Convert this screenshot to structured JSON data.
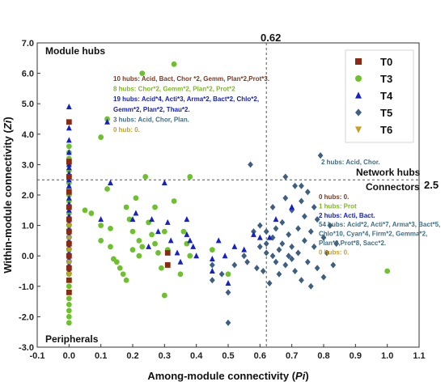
{
  "chart_data": {
    "type": "scatter",
    "xlabel": "Among-module connectivity (",
    "xlabel_var": "Pi",
    "xlabel_end": ")",
    "ylabel": "Within-module connectivity (",
    "ylabel_var": "Zi",
    "ylabel_end": ")",
    "xlim": [
      -0.1,
      1.1
    ],
    "ylim": [
      -3.0,
      7.0
    ],
    "xticks": [
      "-0.1",
      "0.0",
      "0.1",
      "0.2",
      "0.3",
      "0.4",
      "0.5",
      "0.6",
      "0.7",
      "0.8",
      "0.9",
      "1.0",
      "1.1"
    ],
    "yticks": [
      "-3.0",
      "-2.0",
      "-1.0",
      "0.0",
      "1.0",
      "2.0",
      "3.0",
      "4.0",
      "5.0",
      "6.0",
      "7.0"
    ],
    "thresholds": {
      "x": 0.62,
      "y": 2.5,
      "x_label": "0.62",
      "y_label": "2.5"
    },
    "regions": {
      "module_hubs": "Module hubs",
      "network_hubs": "Network hubs",
      "connectors": "Connectors",
      "peripherals": "Peripherals"
    },
    "legend": {
      "placement": "top-right",
      "items": [
        {
          "name": "T0",
          "marker": "square",
          "color": "#8B2A12"
        },
        {
          "name": "T3",
          "marker": "circle",
          "color": "#6DC22B"
        },
        {
          "name": "T4",
          "marker": "triangle",
          "color": "#1520C8"
        },
        {
          "name": "T5",
          "marker": "diamond",
          "color": "#3E5F82"
        },
        {
          "name": "T6",
          "marker": "triangle-down",
          "color": "#C8A020"
        }
      ]
    },
    "annotations_module_hubs": [
      {
        "text": "10 hubs: Acid, Bact, Chor *2, Gemm, Plan*2,Prot*3.",
        "color": "#7A3A22"
      },
      {
        "text": "8 hubs: Chor*2, Gemm*2, Plan*2, Prot*2",
        "color": "#7DB81F"
      },
      {
        "text": "19 hubs: Acid*4, Acti*3, Arma*2, Bact*2, Chlo*2,",
        "color": "#1520C8"
      },
      {
        "text": "Gemm*2, Plan*2, Thau*2.",
        "color": "#1520C8"
      },
      {
        "text": "3 hubs:  Acid, Chor, Plan.",
        "color": "#3E6E86"
      },
      {
        "text": "0 hub: 0.",
        "color": "#C8A020"
      }
    ],
    "annotation_network_hubs": {
      "text": "2 hubs:  Acid, Chor.",
      "color": "#3E6E86"
    },
    "annotations_connectors": [
      {
        "text": "0 hubs: 0.",
        "color": "#7A3A22"
      },
      {
        "text": "1 hubs: Prot",
        "color": "#7DB81F"
      },
      {
        "text": "2 hubs: Acti, Bact.",
        "color": "#1520C8"
      },
      {
        "text": "54 hubs: Acid*2, Acti*7, Arma*3, Bact*5,",
        "color": "#3E6E86"
      },
      {
        "text": "Chlo*10, Cyan*4, Firm*2, Gemma*2,",
        "color": "#3E6E86"
      },
      {
        "text": "Plan*9,Prot*8, Sacc*2.",
        "color": "#3E6E86"
      },
      {
        "text": "0 hubs: 0.",
        "color": "#C8A020"
      }
    ],
    "series": [
      {
        "name": "T0",
        "points": [
          [
            0.0,
            4.4
          ],
          [
            0.0,
            3.1
          ],
          [
            0.0,
            2.6
          ],
          [
            0.0,
            2.1
          ],
          [
            0.0,
            1.6
          ],
          [
            0.0,
            1.2
          ],
          [
            0.0,
            0.8
          ],
          [
            0.0,
            0.4
          ],
          [
            0.0,
            0.0
          ],
          [
            0.0,
            -0.4
          ],
          [
            0.0,
            -0.8
          ],
          [
            0.0,
            -1.2
          ],
          [
            0.31,
            0.1
          ],
          [
            0.31,
            -0.3
          ]
        ]
      },
      {
        "name": "T3",
        "points": [
          [
            0.0,
            3.6
          ],
          [
            0.0,
            3.4
          ],
          [
            0.0,
            3.2
          ],
          [
            0.0,
            3.0
          ],
          [
            0.0,
            2.8
          ],
          [
            0.0,
            2.6
          ],
          [
            0.0,
            2.4
          ],
          [
            0.0,
            2.2
          ],
          [
            0.0,
            2.0
          ],
          [
            0.0,
            1.8
          ],
          [
            0.0,
            1.6
          ],
          [
            0.0,
            1.4
          ],
          [
            0.0,
            1.2
          ],
          [
            0.0,
            1.0
          ],
          [
            0.0,
            0.8
          ],
          [
            0.0,
            0.6
          ],
          [
            0.0,
            0.4
          ],
          [
            0.0,
            0.2
          ],
          [
            0.0,
            0.0
          ],
          [
            0.0,
            -0.2
          ],
          [
            0.0,
            -0.4
          ],
          [
            0.0,
            -0.6
          ],
          [
            0.0,
            -0.8
          ],
          [
            0.0,
            -1.0
          ],
          [
            0.0,
            -1.2
          ],
          [
            0.0,
            -1.4
          ],
          [
            0.0,
            -1.6
          ],
          [
            0.0,
            -1.8
          ],
          [
            0.0,
            -2.0
          ],
          [
            0.0,
            -2.2
          ],
          [
            0.05,
            1.5
          ],
          [
            0.07,
            1.4
          ],
          [
            0.1,
            3.9
          ],
          [
            0.1,
            1.0
          ],
          [
            0.1,
            0.5
          ],
          [
            0.12,
            4.5
          ],
          [
            0.12,
            2.2
          ],
          [
            0.13,
            0.9
          ],
          [
            0.13,
            0.3
          ],
          [
            0.14,
            -0.1
          ],
          [
            0.15,
            -0.2
          ],
          [
            0.16,
            -0.4
          ],
          [
            0.17,
            -0.6
          ],
          [
            0.18,
            -0.8
          ],
          [
            0.18,
            1.6
          ],
          [
            0.19,
            1.2
          ],
          [
            0.2,
            0.8
          ],
          [
            0.2,
            0.2
          ],
          [
            0.21,
            1.9
          ],
          [
            0.22,
            0.5
          ],
          [
            0.22,
            0.0
          ],
          [
            0.23,
            6.0
          ],
          [
            0.23,
            0.3
          ],
          [
            0.24,
            2.6
          ],
          [
            0.25,
            1.1
          ],
          [
            0.26,
            0.7
          ],
          [
            0.27,
            0.4
          ],
          [
            0.27,
            1.6
          ],
          [
            0.28,
            0.1
          ],
          [
            0.29,
            -0.4
          ],
          [
            0.3,
            0.8
          ],
          [
            0.3,
            -1.3
          ],
          [
            0.31,
            0.2
          ],
          [
            0.33,
            6.3
          ],
          [
            0.33,
            1.8
          ],
          [
            0.35,
            -0.6
          ],
          [
            0.36,
            0.8
          ],
          [
            0.37,
            0.4
          ],
          [
            0.38,
            2.6
          ],
          [
            0.38,
            0.0
          ],
          [
            0.45,
            0.2
          ],
          [
            0.5,
            -0.6
          ],
          [
            1.0,
            -0.5
          ]
        ]
      },
      {
        "name": "T4",
        "points": [
          [
            0.0,
            4.9
          ],
          [
            0.0,
            4.2
          ],
          [
            0.0,
            3.8
          ],
          [
            0.0,
            3.4
          ],
          [
            0.0,
            3.0
          ],
          [
            0.0,
            2.9
          ],
          [
            0.0,
            2.7
          ],
          [
            0.0,
            2.5
          ],
          [
            0.0,
            2.3
          ],
          [
            0.0,
            2.1
          ],
          [
            0.0,
            1.9
          ],
          [
            0.0,
            1.7
          ],
          [
            0.0,
            1.5
          ],
          [
            0.0,
            1.3
          ],
          [
            0.0,
            1.1
          ],
          [
            0.0,
            0.9
          ],
          [
            0.0,
            0.7
          ],
          [
            0.0,
            0.5
          ],
          [
            0.0,
            0.3
          ],
          [
            0.0,
            0.1
          ],
          [
            0.0,
            -0.1
          ],
          [
            0.0,
            -0.3
          ],
          [
            0.0,
            -0.5
          ],
          [
            0.1,
            1.2
          ],
          [
            0.12,
            4.4
          ],
          [
            0.13,
            2.4
          ],
          [
            0.2,
            1.2
          ],
          [
            0.21,
            1.4
          ],
          [
            0.25,
            0.3
          ],
          [
            0.26,
            1.2
          ],
          [
            0.28,
            0.8
          ],
          [
            0.3,
            2.4
          ],
          [
            0.31,
            1.1
          ],
          [
            0.32,
            0.5
          ],
          [
            0.34,
            0.1
          ],
          [
            0.35,
            -0.2
          ],
          [
            0.37,
            1.2
          ],
          [
            0.37,
            0.7
          ],
          [
            0.38,
            0.5
          ],
          [
            0.39,
            0.3
          ],
          [
            0.4,
            0.0
          ],
          [
            0.45,
            -0.1
          ],
          [
            0.45,
            -0.5
          ],
          [
            0.47,
            0.5
          ],
          [
            0.49,
            0.0
          ],
          [
            0.5,
            -0.9
          ],
          [
            0.52,
            0.3
          ],
          [
            0.55,
            0.2
          ],
          [
            0.58,
            0.7
          ],
          [
            0.6,
            0.6
          ],
          [
            0.63,
            0.6
          ],
          [
            0.65,
            1.2
          ],
          [
            0.7,
            1.6
          ]
        ]
      },
      {
        "name": "T5",
        "points": [
          [
            0.45,
            -0.3
          ],
          [
            0.45,
            -0.8
          ],
          [
            0.48,
            -0.6
          ],
          [
            0.5,
            -1.2
          ],
          [
            0.5,
            -2.2
          ],
          [
            0.52,
            -0.3
          ],
          [
            0.55,
            0.0
          ],
          [
            0.56,
            -0.2
          ],
          [
            0.57,
            3.0
          ],
          [
            0.58,
            0.8
          ],
          [
            0.59,
            -0.4
          ],
          [
            0.6,
            0.3
          ],
          [
            0.6,
            1.0
          ],
          [
            0.61,
            -0.5
          ],
          [
            0.62,
            0.1
          ],
          [
            0.62,
            0.4
          ],
          [
            0.63,
            -0.9
          ],
          [
            0.64,
            0.0
          ],
          [
            0.64,
            0.6
          ],
          [
            0.65,
            -0.2
          ],
          [
            0.65,
            0.9
          ],
          [
            0.66,
            0.2
          ],
          [
            0.66,
            -0.6
          ],
          [
            0.67,
            1.1
          ],
          [
            0.67,
            0.4
          ],
          [
            0.68,
            -0.3
          ],
          [
            0.68,
            2.6
          ],
          [
            0.69,
            0.7
          ],
          [
            0.69,
            0.0
          ],
          [
            0.7,
            1.5
          ],
          [
            0.7,
            -0.1
          ],
          [
            0.7,
            0.3
          ],
          [
            0.71,
            2.3
          ],
          [
            0.71,
            -0.5
          ],
          [
            0.72,
            0.9
          ],
          [
            0.72,
            0.1
          ],
          [
            0.73,
            1.8
          ],
          [
            0.73,
            -0.8
          ],
          [
            0.74,
            1.3
          ],
          [
            0.74,
            0.5
          ],
          [
            0.75,
            2.1
          ],
          [
            0.75,
            -0.2
          ],
          [
            0.76,
            0.8
          ],
          [
            0.76,
            -1.0
          ],
          [
            0.77,
            0.3
          ],
          [
            0.78,
            1.2
          ],
          [
            0.78,
            -0.4
          ],
          [
            0.79,
            3.3
          ],
          [
            0.8,
            0.6
          ],
          [
            0.8,
            -0.7
          ],
          [
            0.81,
            0.1
          ],
          [
            0.82,
            1.0
          ],
          [
            0.83,
            -0.3
          ],
          [
            0.84,
            0.4
          ],
          [
            0.62,
            0.8
          ],
          [
            0.64,
            1.6
          ],
          [
            0.68,
            1.9
          ],
          [
            0.73,
            2.3
          ],
          [
            0.77,
            1.6
          ]
        ]
      },
      {
        "name": "T6",
        "points": [
          [
            0.0,
            1.0
          ],
          [
            0.0,
            0.6
          ],
          [
            0.0,
            0.2
          ],
          [
            0.0,
            -0.2
          ],
          [
            0.0,
            -0.6
          ]
        ]
      }
    ]
  }
}
